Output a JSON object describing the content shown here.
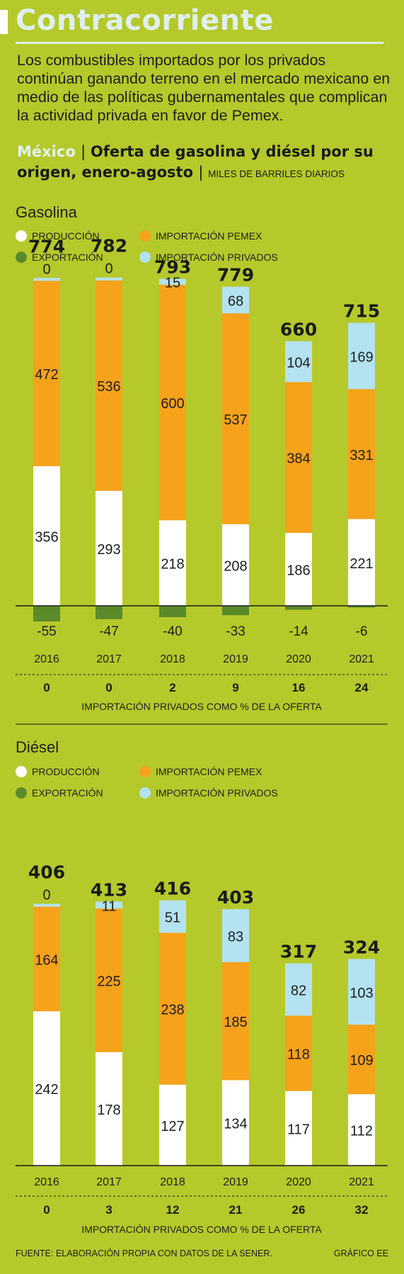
{
  "title": "Contracorriente",
  "intro": "Los combustibles importados por los privados continúan ganando terreno en el mercado mexicano en medio de las políticas gubernamentales que complican la actividad privada en favor de Pemex.",
  "subtitle": {
    "country": "México",
    "main": "Oferta de gasolina y diésel por su origen, enero-agosto",
    "units": "MILES DE BARRILES DIARIOS"
  },
  "colors": {
    "background": "#b5c92b",
    "produccion": "#ffffff",
    "importacion_pemex": "#f7a21b",
    "exportacion": "#5a8a2a",
    "importacion_privados": "#b3e2f1"
  },
  "legend": {
    "produccion": "PRODUCCIÓN",
    "importacion_pemex": "IMPORTACIÓN PEMEX",
    "exportacion": "EXPORTACIÓN",
    "importacion_privados": "IMPORTACIÓN PRIVADOS"
  },
  "chart_data": [
    {
      "type": "bar",
      "stacked": true,
      "title": "Gasolina",
      "categories": [
        "2016",
        "2017",
        "2018",
        "2019",
        "2020",
        "2021"
      ],
      "totals": [
        774,
        782,
        793,
        779,
        660,
        715
      ],
      "series": [
        {
          "name": "PRODUCCIÓN",
          "key": "produccion",
          "values": [
            356,
            293,
            218,
            208,
            186,
            221
          ]
        },
        {
          "name": "IMPORTACIÓN PEMEX",
          "key": "importacion_pemex",
          "values": [
            472,
            536,
            600,
            537,
            384,
            331
          ]
        },
        {
          "name": "IMPORTACIÓN PRIVADOS",
          "key": "importacion_privados",
          "values": [
            0,
            0,
            15,
            68,
            104,
            169
          ]
        },
        {
          "name": "EXPORTACIÓN",
          "key": "exportacion",
          "values": [
            -55,
            -47,
            -40,
            -33,
            -14,
            -6
          ]
        }
      ],
      "share_label": "IMPORTACIÓN PRIVADOS COMO % DE LA OFERTA",
      "share_values": [
        0,
        0,
        2,
        9,
        16,
        24
      ]
    },
    {
      "type": "bar",
      "stacked": true,
      "title": "Diésel",
      "categories": [
        "2016",
        "2017",
        "2018",
        "2019",
        "2020",
        "2021"
      ],
      "totals": [
        406,
        413,
        416,
        403,
        317,
        324
      ],
      "series": [
        {
          "name": "PRODUCCIÓN",
          "key": "produccion",
          "values": [
            242,
            178,
            127,
            134,
            117,
            112
          ]
        },
        {
          "name": "IMPORTACIÓN PEMEX",
          "key": "importacion_pemex",
          "values": [
            164,
            225,
            238,
            185,
            118,
            109
          ]
        },
        {
          "name": "IMPORTACIÓN PRIVADOS",
          "key": "importacion_privados",
          "values": [
            0,
            11,
            51,
            83,
            82,
            103
          ]
        },
        {
          "name": "EXPORTACIÓN",
          "key": "exportacion",
          "values": [
            0,
            0,
            0,
            0,
            0,
            0
          ]
        }
      ],
      "share_label": "IMPORTACIÓN PRIVADOS COMO % DE LA OFERTA",
      "share_values": [
        0,
        3,
        12,
        21,
        26,
        32
      ]
    }
  ],
  "footer": {
    "source": "FUENTE: ELABORACIÓN PROPIA CON DATOS DE LA SENER.",
    "credit": "GRÁFICO EE"
  }
}
